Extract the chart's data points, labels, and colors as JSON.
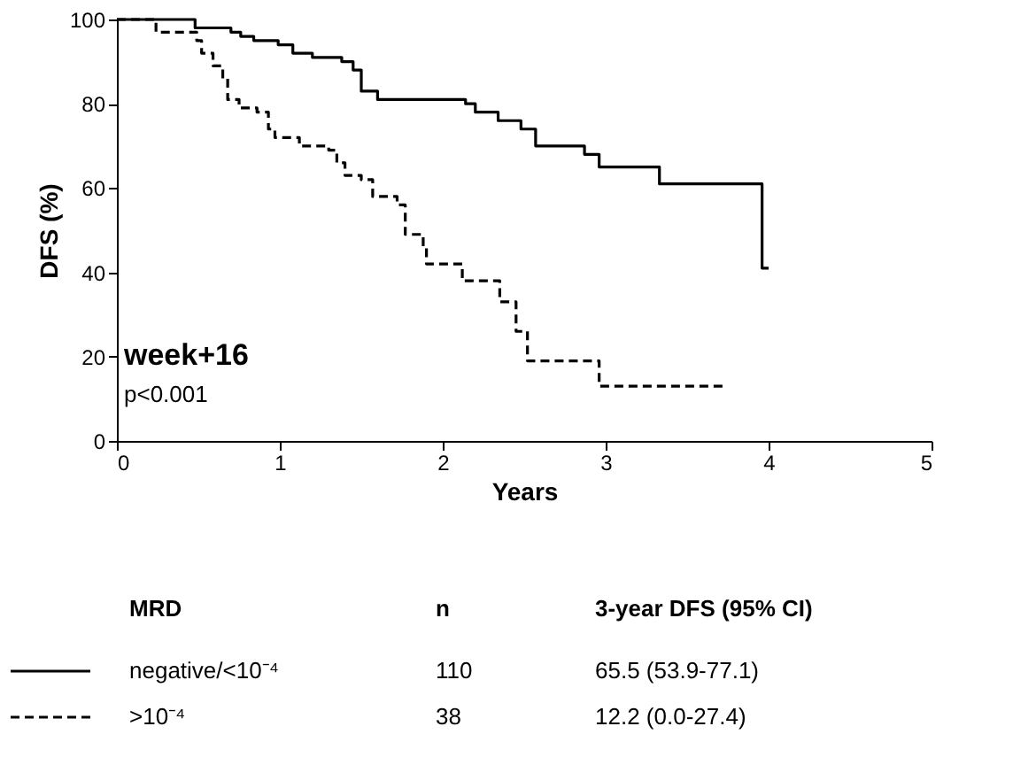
{
  "chart_data": {
    "type": "step",
    "xlabel": "Years",
    "ylabel": "DFS (%)",
    "legend_title": "MRD",
    "xlim": [
      0,
      5
    ],
    "xticks": [
      0,
      1,
      2,
      3,
      4,
      5
    ],
    "ylim": [
      0,
      100
    ],
    "yticks": [
      0,
      20,
      40,
      60,
      80,
      100
    ],
    "legend": "bottom",
    "marker": "none",
    "annotations": [
      "week+16",
      "p<0.001",
      "n",
      "3-year DFS (95% CI)",
      "110",
      "65.5 (53.9-77.1)",
      "38",
      "12.2 (0.0-27.4)"
    ],
    "series": [
      {
        "name": "negative/<10⁻⁴",
        "color": "#000000",
        "line_style": "solid",
        "x": [
          0,
          0.48,
          0.7,
          0.76,
          0.84,
          0.99,
          1.08,
          1.2,
          1.38,
          1.45,
          1.5,
          1.6,
          2.14,
          2.2,
          2.34,
          2.48,
          2.57,
          2.87,
          2.96,
          3.33,
          3.96,
          4.0
        ],
        "values": [
          100,
          98,
          97,
          96,
          95,
          94,
          92,
          91,
          90,
          88,
          83,
          81,
          80,
          78,
          76,
          74,
          70,
          68,
          65,
          61,
          41,
          41
        ]
      },
      {
        "name": ">10⁻⁴",
        "color": "#000000",
        "line_style": "dashed",
        "x": [
          0,
          0.24,
          0.49,
          0.52,
          0.59,
          0.65,
          0.68,
          0.75,
          0.86,
          0.93,
          0.97,
          1.12,
          1.3,
          1.35,
          1.4,
          1.5,
          1.57,
          1.72,
          1.77,
          1.88,
          1.9,
          2.12,
          2.35,
          2.45,
          2.52,
          2.96,
          3.73
        ],
        "values": [
          100,
          97,
          95,
          92,
          89,
          86,
          81,
          79,
          78,
          74,
          72,
          70,
          69,
          66,
          63,
          62,
          58,
          56,
          49,
          46,
          42,
          38,
          33,
          26,
          19,
          13,
          13
        ]
      }
    ]
  }
}
